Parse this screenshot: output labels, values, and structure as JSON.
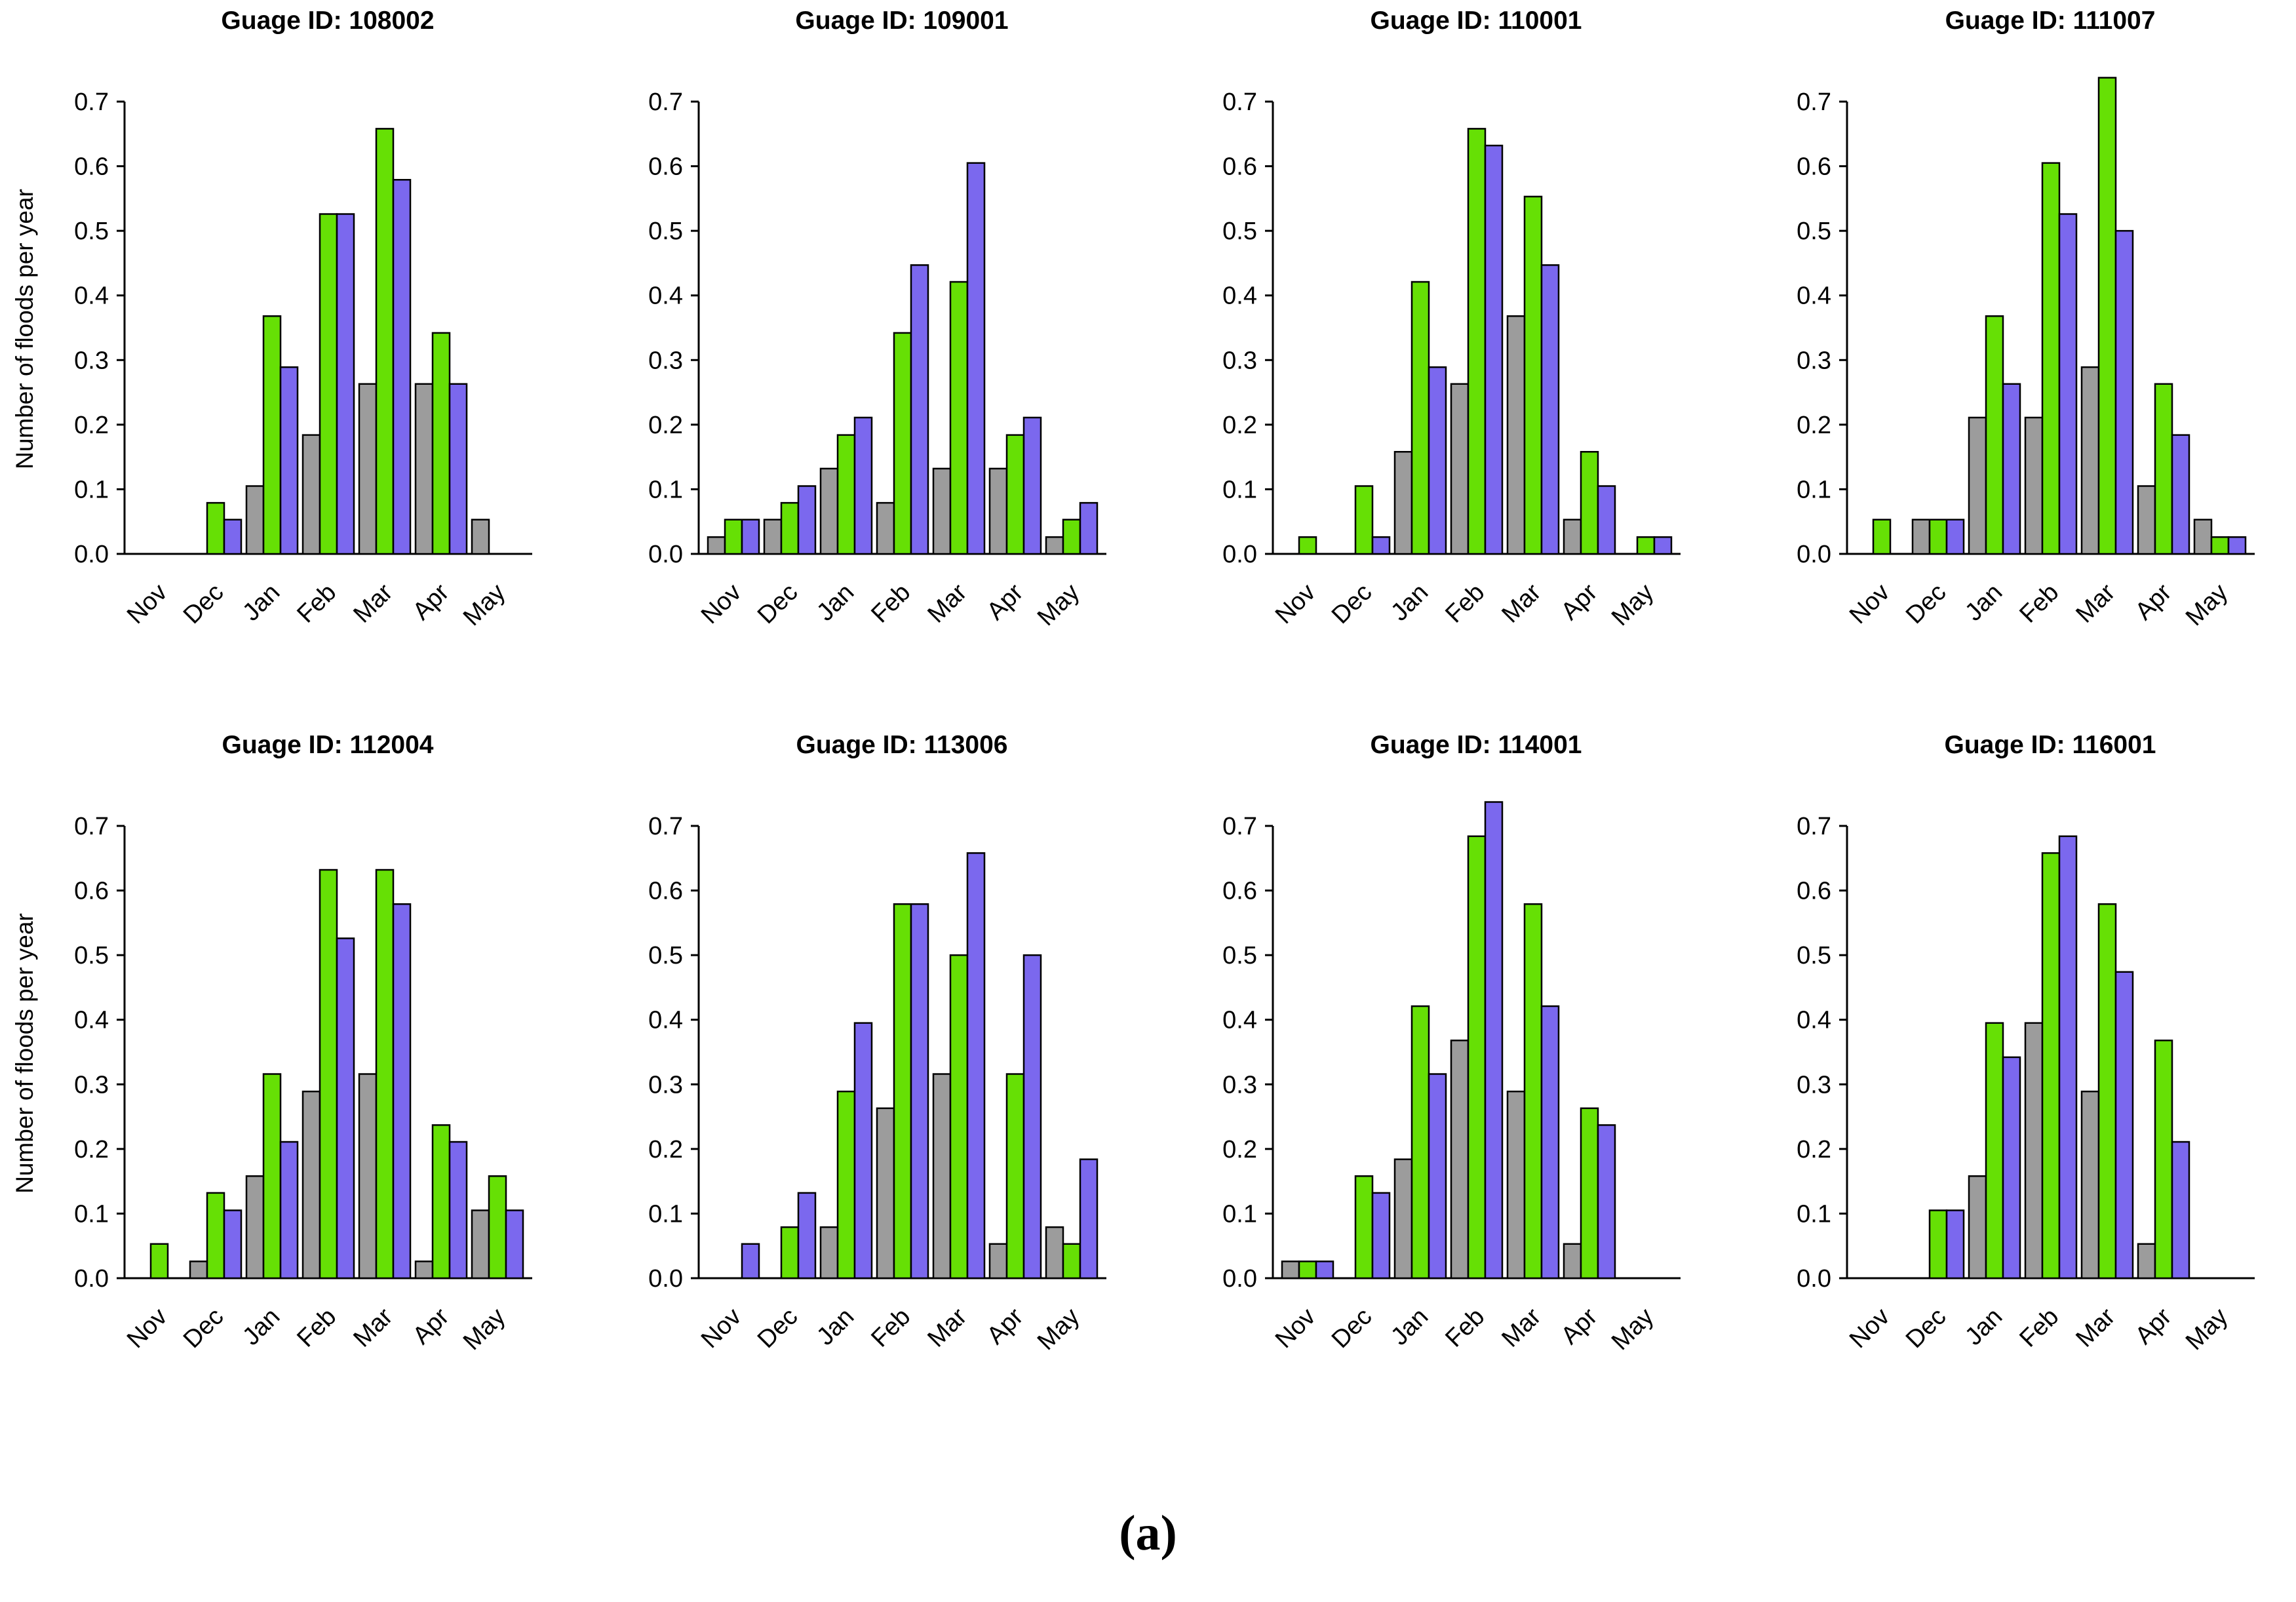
{
  "caption": "(a)",
  "shared": {
    "ylabel": "Number of floods per year",
    "yticks": [
      "0.0",
      "0.1",
      "0.2",
      "0.3",
      "0.4",
      "0.5",
      "0.6",
      "0.7"
    ],
    "ylim": [
      0,
      0.7
    ],
    "colors": {
      "gray": "#9C9C9C",
      "green": "#66E005",
      "purple": "#7B68EE"
    }
  },
  "chart_data": [
    {
      "type": "bar",
      "title": "Guage ID: 108002",
      "categories": [
        "Nov",
        "Dec",
        "Jan",
        "Feb",
        "Mar",
        "Apr",
        "May"
      ],
      "series": [
        {
          "name": "gray",
          "values": [
            0,
            0,
            0.105,
            0.184,
            0.263,
            0.263,
            0.053
          ]
        },
        {
          "name": "green",
          "values": [
            0,
            0.079,
            0.368,
            0.526,
            0.658,
            0.342,
            0
          ]
        },
        {
          "name": "purple",
          "values": [
            0,
            0.053,
            0.289,
            0.526,
            0.579,
            0.263,
            0
          ]
        }
      ]
    },
    {
      "type": "bar",
      "title": "Guage ID: 109001",
      "categories": [
        "Nov",
        "Dec",
        "Jan",
        "Feb",
        "Mar",
        "Apr",
        "May"
      ],
      "series": [
        {
          "name": "gray",
          "values": [
            0.026,
            0.053,
            0.132,
            0.079,
            0.132,
            0.132,
            0.026
          ]
        },
        {
          "name": "green",
          "values": [
            0.053,
            0.079,
            0.184,
            0.342,
            0.421,
            0.184,
            0.053
          ]
        },
        {
          "name": "purple",
          "values": [
            0.053,
            0.105,
            0.211,
            0.447,
            0.605,
            0.211,
            0.079
          ]
        }
      ]
    },
    {
      "type": "bar",
      "title": "Guage ID: 110001",
      "categories": [
        "Nov",
        "Dec",
        "Jan",
        "Feb",
        "Mar",
        "Apr",
        "May"
      ],
      "series": [
        {
          "name": "gray",
          "values": [
            0,
            0,
            0.158,
            0.263,
            0.368,
            0.053,
            0
          ]
        },
        {
          "name": "green",
          "values": [
            0.026,
            0.105,
            0.421,
            0.658,
            0.553,
            0.158,
            0.026
          ]
        },
        {
          "name": "purple",
          "values": [
            0,
            0.026,
            0.289,
            0.632,
            0.447,
            0.105,
            0.026
          ]
        }
      ]
    },
    {
      "type": "bar",
      "title": "Guage ID: 111007",
      "categories": [
        "Nov",
        "Dec",
        "Jan",
        "Feb",
        "Mar",
        "Apr",
        "May"
      ],
      "series": [
        {
          "name": "gray",
          "values": [
            0,
            0.053,
            0.211,
            0.211,
            0.289,
            0.105,
            0.053
          ]
        },
        {
          "name": "green",
          "values": [
            0.053,
            0.053,
            0.368,
            0.605,
            0.737,
            0.263,
            0.026
          ]
        },
        {
          "name": "purple",
          "values": [
            0,
            0.053,
            0.263,
            0.526,
            0.5,
            0.184,
            0.026
          ]
        }
      ]
    },
    {
      "type": "bar",
      "title": "Guage ID: 112004",
      "categories": [
        "Nov",
        "Dec",
        "Jan",
        "Feb",
        "Mar",
        "Apr",
        "May"
      ],
      "series": [
        {
          "name": "gray",
          "values": [
            0,
            0.026,
            0.158,
            0.289,
            0.316,
            0.026,
            0.105
          ]
        },
        {
          "name": "green",
          "values": [
            0.053,
            0.132,
            0.316,
            0.632,
            0.632,
            0.237,
            0.158
          ]
        },
        {
          "name": "purple",
          "values": [
            0,
            0.105,
            0.211,
            0.526,
            0.579,
            0.211,
            0.105
          ]
        }
      ]
    },
    {
      "type": "bar",
      "title": "Guage ID: 113006",
      "categories": [
        "Nov",
        "Dec",
        "Jan",
        "Feb",
        "Mar",
        "Apr",
        "May"
      ],
      "series": [
        {
          "name": "gray",
          "values": [
            0,
            0,
            0.079,
            0.263,
            0.316,
            0.053,
            0.079
          ]
        },
        {
          "name": "green",
          "values": [
            0,
            0.079,
            0.289,
            0.579,
            0.5,
            0.316,
            0.053
          ]
        },
        {
          "name": "purple",
          "values": [
            0.053,
            0.132,
            0.395,
            0.579,
            0.658,
            0.5,
            0.184
          ]
        }
      ]
    },
    {
      "type": "bar",
      "title": "Guage ID: 114001",
      "categories": [
        "Nov",
        "Dec",
        "Jan",
        "Feb",
        "Mar",
        "Apr",
        "May"
      ],
      "series": [
        {
          "name": "gray",
          "values": [
            0.026,
            0,
            0.184,
            0.368,
            0.289,
            0.053,
            0
          ]
        },
        {
          "name": "green",
          "values": [
            0.026,
            0.158,
            0.421,
            0.684,
            0.579,
            0.263,
            0
          ]
        },
        {
          "name": "purple",
          "values": [
            0.026,
            0.132,
            0.316,
            0.737,
            0.421,
            0.237,
            0
          ]
        }
      ]
    },
    {
      "type": "bar",
      "title": "Guage ID: 116001",
      "categories": [
        "Nov",
        "Dec",
        "Jan",
        "Feb",
        "Mar",
        "Apr",
        "May"
      ],
      "series": [
        {
          "name": "gray",
          "values": [
            0,
            0,
            0.158,
            0.395,
            0.289,
            0.053,
            0
          ]
        },
        {
          "name": "green",
          "values": [
            0,
            0.105,
            0.395,
            0.658,
            0.579,
            0.368,
            0
          ]
        },
        {
          "name": "purple",
          "values": [
            0,
            0.105,
            0.342,
            0.684,
            0.474,
            0.211,
            0
          ]
        }
      ]
    }
  ]
}
